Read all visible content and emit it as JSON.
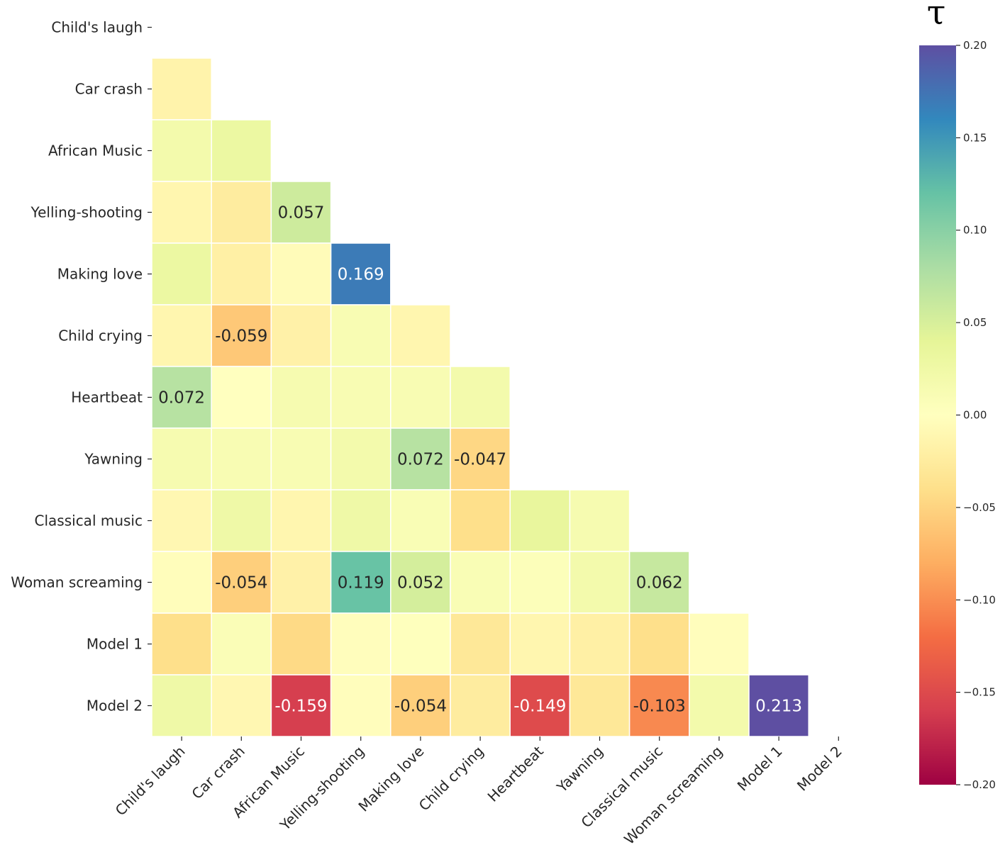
{
  "chart_data": {
    "type": "heatmap",
    "title": "",
    "colorbar_title": "τ",
    "colormap": "Spectral",
    "vmin": -0.2,
    "vmax": 0.2,
    "mask": "upper-triangle",
    "colorbar_ticks": [
      0.2,
      0.15,
      0.1,
      0.05,
      0.0,
      -0.05,
      -0.1,
      -0.15,
      -0.2
    ],
    "colorbar_tick_labels": [
      "0.20",
      "0.15",
      "0.10",
      "0.05",
      "0.00",
      "−0.05",
      "−0.10",
      "−0.15",
      "−0.20"
    ],
    "row_labels": [
      "Child's laugh",
      "Car crash",
      "African Music",
      "Yelling-shooting",
      "Making love",
      "Child crying",
      "Heartbeat",
      "Yawning",
      "Classical music",
      "Woman screaming",
      "Model 1",
      "Model 2"
    ],
    "col_labels": [
      "Child's laugh",
      "Car crash",
      "African Music",
      "Yelling-shooting",
      "Making love",
      "Child crying",
      "Heartbeat",
      "Yawning",
      "Classical music",
      "Woman screaming",
      "Model 1",
      "Model 2"
    ],
    "values": [
      [],
      [
        -0.015
      ],
      [
        0.02,
        0.03
      ],
      [
        -0.012,
        -0.025,
        0.057
      ],
      [
        0.03,
        -0.02,
        -0.005,
        0.169
      ],
      [
        -0.012,
        -0.059,
        -0.018,
        0.012,
        -0.012
      ],
      [
        0.072,
        0.0,
        0.015,
        0.012,
        0.012,
        0.02
      ],
      [
        0.015,
        0.012,
        0.012,
        0.02,
        0.072,
        -0.047
      ],
      [
        -0.01,
        0.025,
        -0.012,
        0.025,
        0.01,
        -0.04,
        0.035,
        0.015
      ],
      [
        -0.003,
        -0.054,
        -0.018,
        0.119,
        0.052,
        0.01,
        0.005,
        0.02,
        0.062
      ],
      [
        -0.04,
        0.008,
        -0.045,
        -0.002,
        0.002,
        -0.03,
        -0.012,
        -0.02,
        -0.04,
        -0.002
      ],
      [
        0.025,
        -0.01,
        -0.159,
        -0.002,
        -0.054,
        -0.025,
        -0.149,
        -0.03,
        -0.103,
        0.02,
        0.213
      ]
    ],
    "annotations": [
      {
        "row": 3,
        "col": 2,
        "text": "0.057"
      },
      {
        "row": 4,
        "col": 3,
        "text": "0.169"
      },
      {
        "row": 5,
        "col": 1,
        "text": "-0.059"
      },
      {
        "row": 6,
        "col": 0,
        "text": "0.072"
      },
      {
        "row": 7,
        "col": 4,
        "text": "0.072"
      },
      {
        "row": 7,
        "col": 5,
        "text": "-0.047"
      },
      {
        "row": 9,
        "col": 1,
        "text": "-0.054"
      },
      {
        "row": 9,
        "col": 3,
        "text": "0.119"
      },
      {
        "row": 9,
        "col": 4,
        "text": "0.052"
      },
      {
        "row": 9,
        "col": 8,
        "text": "0.062"
      },
      {
        "row": 11,
        "col": 2,
        "text": "-0.159"
      },
      {
        "row": 11,
        "col": 4,
        "text": "-0.054"
      },
      {
        "row": 11,
        "col": 6,
        "text": "-0.149"
      },
      {
        "row": 11,
        "col": 8,
        "text": "-0.103"
      },
      {
        "row": 11,
        "col": 10,
        "text": "0.213"
      }
    ]
  }
}
